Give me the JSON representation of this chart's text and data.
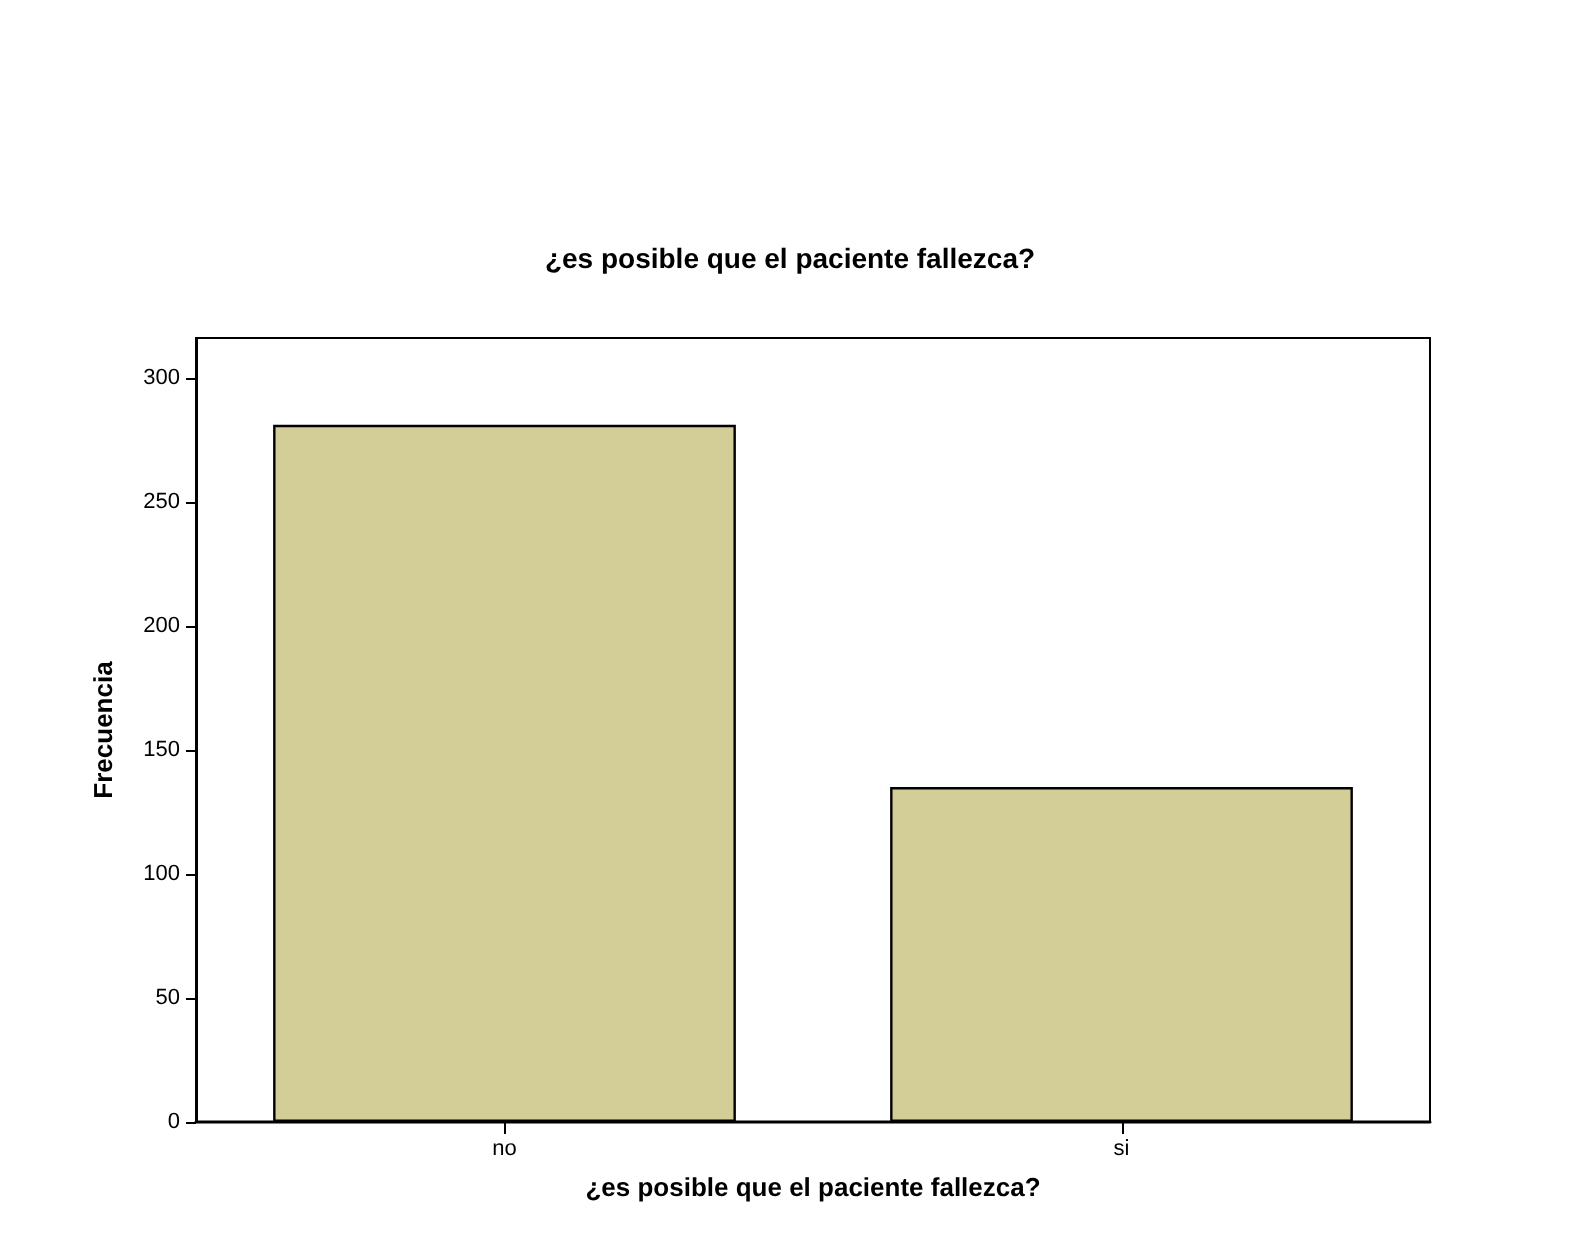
{
  "chart_data": {
    "type": "bar",
    "title": "¿es posible que el paciente fallezca?",
    "xlabel": "¿es posible que el paciente fallezca?",
    "ylabel": "Frecuencia",
    "categories": [
      "no",
      "si"
    ],
    "values": [
      281,
      135
    ],
    "color": "#d3cd97",
    "ylim": [
      0,
      316
    ],
    "yticks": [
      0,
      50,
      100,
      150,
      200,
      250,
      300
    ],
    "grid": false
  }
}
